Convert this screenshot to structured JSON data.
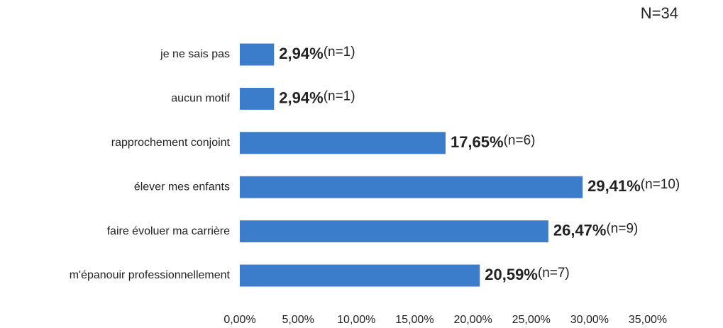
{
  "chart_data": {
    "type": "bar",
    "orientation": "horizontal",
    "annotation": "N=34",
    "categories": [
      "je ne sais pas",
      "aucun motif",
      "rapprochement conjoint",
      "élever mes enfants",
      "faire évoluer ma carrière",
      "m'épanouir professionnellement"
    ],
    "values": [
      2.94,
      2.94,
      17.65,
      29.41,
      26.47,
      20.59
    ],
    "value_labels": [
      "2,94%",
      "2,94%",
      "17,65%",
      "29,41%",
      "26,47%",
      "20,59%"
    ],
    "count_labels": [
      "(n=1)",
      "(n=1)",
      "(n=6)",
      "(n=10)",
      "(n=9)",
      "(n=7)"
    ],
    "color": "#3b7dca",
    "xlim": [
      0,
      35
    ],
    "xticks": [
      {
        "value": 0,
        "label": "0,00%"
      },
      {
        "value": 5,
        "label": "5,00%"
      },
      {
        "value": 10,
        "label": "10,00%"
      },
      {
        "value": 15,
        "label": "15,00%"
      },
      {
        "value": 20,
        "label": "20,00%"
      },
      {
        "value": 25,
        "label": "25,00%"
      },
      {
        "value": 30,
        "label": "30,00%"
      },
      {
        "value": 35,
        "label": "35,00%"
      }
    ],
    "grid": false
  }
}
